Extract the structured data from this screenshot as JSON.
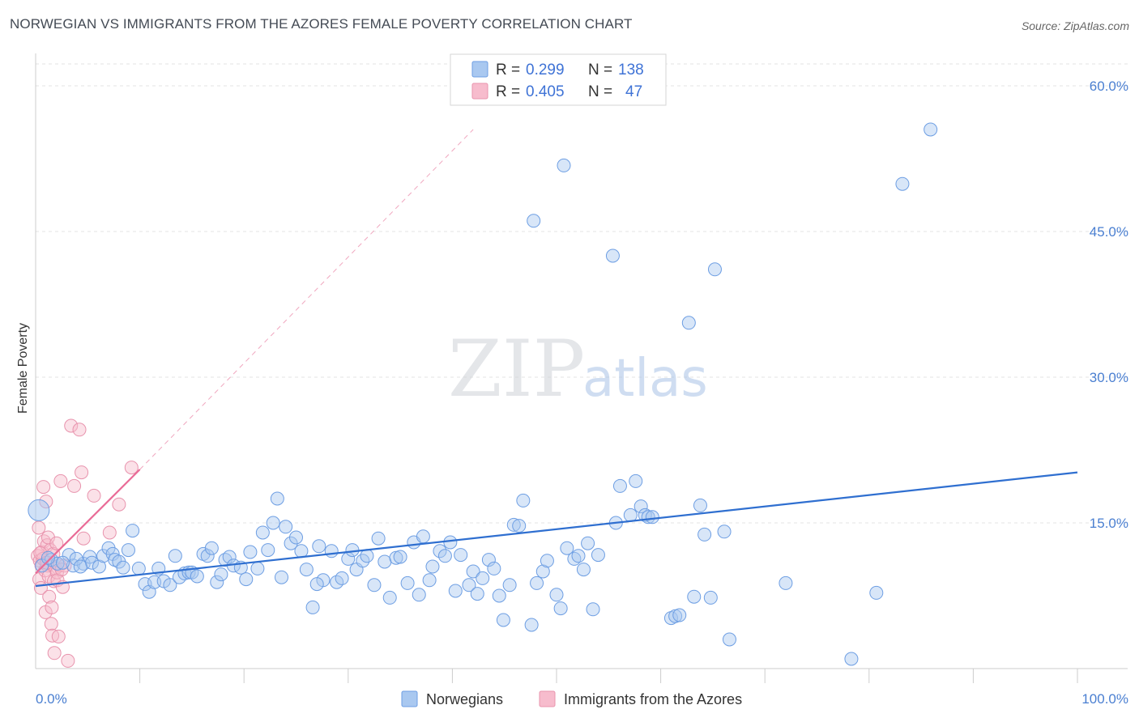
{
  "header": {
    "title": "NORWEGIAN VS IMMIGRANTS FROM THE AZORES FEMALE POVERTY CORRELATION CHART",
    "source": "Source: ZipAtlas.com"
  },
  "watermark": {
    "zip": "ZIP",
    "atlas": "atlas"
  },
  "legend": {
    "rows": [
      {
        "r_label": "R = ",
        "r_value": "0.299",
        "n_label": "N = ",
        "n_value": "138",
        "color": "#a9c8f0",
        "stroke": "#6d9ee3"
      },
      {
        "r_label": "R = ",
        "r_value": "0.405",
        "n_label": "N = ",
        "n_value": "47",
        "color": "#f7bccd",
        "stroke": "#e893ad"
      }
    ]
  },
  "bottom_legend": [
    {
      "label": "Norwegians",
      "color": "#a9c8f0",
      "stroke": "#6d9ee3"
    },
    {
      "label": "Immigrants from the Azores",
      "color": "#f7bccd",
      "stroke": "#e893ad"
    }
  ],
  "chart_data": {
    "type": "scatter",
    "title": "NORWEGIAN VS IMMIGRANTS FROM THE AZORES FEMALE POVERTY CORRELATION CHART",
    "xlabel": "",
    "ylabel": "Female Poverty",
    "xlim": [
      0,
      100
    ],
    "ylim": [
      0,
      63
    ],
    "x_tick_labels": [
      "0.0%",
      "100.0%"
    ],
    "y_ticks": [
      15,
      30,
      45,
      60
    ],
    "y_tick_labels": [
      "15.0%",
      "30.0%",
      "45.0%",
      "60.0%"
    ],
    "grid": true,
    "legend_position": "top-center",
    "colors": {
      "blue": "#3f7fd6",
      "pink": "#e96a96"
    },
    "series": [
      {
        "name": "Norwegians",
        "color": "#a9c8f0",
        "stroke": "#6d9ee3",
        "trend": {
          "x": [
            0,
            100
          ],
          "y": [
            8.5,
            20.2
          ],
          "style": "solid",
          "color": "#2f6fd0"
        },
        "points": [
          [
            0.3,
            16.3
          ],
          [
            1.5,
            11.2
          ],
          [
            2.1,
            10.8
          ],
          [
            3.2,
            11.7
          ],
          [
            3.6,
            10.6
          ],
          [
            4.6,
            10.8
          ],
          [
            5.2,
            11.5
          ],
          [
            5.4,
            10.9
          ],
          [
            6.1,
            10.5
          ],
          [
            6.5,
            11.6
          ],
          [
            7.0,
            12.4
          ],
          [
            7.4,
            11.8
          ],
          [
            7.6,
            11.2
          ],
          [
            8.0,
            11.0
          ],
          [
            8.4,
            10.4
          ],
          [
            8.9,
            12.2
          ],
          [
            9.3,
            14.2
          ],
          [
            9.9,
            10.3
          ],
          [
            10.5,
            8.7
          ],
          [
            10.9,
            7.9
          ],
          [
            11.4,
            8.9
          ],
          [
            11.8,
            10.3
          ],
          [
            12.3,
            9.0
          ],
          [
            12.9,
            8.6
          ],
          [
            13.4,
            11.6
          ],
          [
            13.8,
            9.4
          ],
          [
            14.3,
            9.8
          ],
          [
            14.7,
            9.9
          ],
          [
            15.0,
            9.9
          ],
          [
            15.5,
            9.5
          ],
          [
            16.1,
            11.8
          ],
          [
            16.5,
            11.6
          ],
          [
            16.9,
            12.4
          ],
          [
            17.4,
            8.9
          ],
          [
            17.8,
            9.7
          ],
          [
            18.2,
            11.2
          ],
          [
            18.6,
            11.5
          ],
          [
            19.0,
            10.6
          ],
          [
            19.7,
            10.4
          ],
          [
            20.2,
            9.2
          ],
          [
            20.6,
            12.0
          ],
          [
            21.3,
            10.3
          ],
          [
            21.8,
            14.0
          ],
          [
            22.3,
            12.2
          ],
          [
            22.8,
            15.0
          ],
          [
            23.2,
            17.5
          ],
          [
            23.6,
            9.4
          ],
          [
            24.0,
            14.6
          ],
          [
            24.5,
            12.9
          ],
          [
            25.0,
            13.5
          ],
          [
            25.5,
            12.1
          ],
          [
            26.0,
            10.2
          ],
          [
            26.6,
            6.3
          ],
          [
            27.2,
            12.6
          ],
          [
            27.6,
            9.1
          ],
          [
            28.4,
            12.1
          ],
          [
            28.9,
            8.9
          ],
          [
            29.4,
            9.3
          ],
          [
            30.0,
            11.3
          ],
          [
            30.4,
            12.2
          ],
          [
            30.8,
            10.2
          ],
          [
            31.4,
            11.1
          ],
          [
            31.8,
            11.6
          ],
          [
            32.5,
            8.6
          ],
          [
            32.9,
            13.4
          ],
          [
            33.5,
            11.0
          ],
          [
            34.0,
            7.3
          ],
          [
            34.6,
            11.4
          ],
          [
            35.0,
            11.5
          ],
          [
            35.7,
            8.8
          ],
          [
            36.3,
            13.0
          ],
          [
            36.8,
            7.6
          ],
          [
            37.2,
            13.6
          ],
          [
            37.8,
            9.1
          ],
          [
            38.1,
            10.5
          ],
          [
            38.8,
            12.1
          ],
          [
            39.3,
            11.6
          ],
          [
            39.8,
            13.0
          ],
          [
            40.3,
            8.0
          ],
          [
            40.8,
            11.7
          ],
          [
            41.6,
            8.6
          ],
          [
            42.0,
            10.0
          ],
          [
            42.4,
            7.7
          ],
          [
            42.9,
            9.3
          ],
          [
            43.5,
            11.2
          ],
          [
            44.0,
            10.3
          ],
          [
            44.5,
            7.5
          ],
          [
            44.9,
            5.0
          ],
          [
            45.5,
            8.6
          ],
          [
            45.9,
            14.8
          ],
          [
            46.4,
            14.7
          ],
          [
            46.8,
            17.3
          ],
          [
            47.6,
            4.5
          ],
          [
            48.1,
            8.8
          ],
          [
            48.7,
            10.0
          ],
          [
            49.1,
            11.1
          ],
          [
            50.0,
            7.6
          ],
          [
            50.7,
            51.8
          ],
          [
            50.4,
            6.2
          ],
          [
            51.0,
            12.4
          ],
          [
            51.7,
            11.3
          ],
          [
            52.1,
            11.6
          ],
          [
            52.6,
            10.2
          ],
          [
            53.0,
            12.9
          ],
          [
            53.5,
            6.1
          ],
          [
            54.0,
            11.7
          ],
          [
            55.4,
            42.5
          ],
          [
            55.7,
            15.0
          ],
          [
            56.1,
            18.8
          ],
          [
            57.1,
            15.8
          ],
          [
            57.6,
            19.3
          ],
          [
            58.1,
            16.7
          ],
          [
            58.5,
            15.8
          ],
          [
            58.8,
            15.6
          ],
          [
            61.0,
            5.2
          ],
          [
            61.4,
            5.4
          ],
          [
            61.8,
            5.5
          ],
          [
            62.7,
            35.6
          ],
          [
            63.2,
            7.4
          ],
          [
            63.8,
            16.8
          ],
          [
            64.2,
            13.8
          ],
          [
            64.8,
            7.3
          ],
          [
            65.2,
            41.1
          ],
          [
            66.1,
            14.1
          ],
          [
            66.6,
            3.0
          ],
          [
            72.0,
            8.8
          ],
          [
            78.3,
            1.0
          ],
          [
            80.7,
            7.8
          ],
          [
            83.2,
            49.9
          ],
          [
            85.9,
            55.5
          ],
          [
            47.8,
            46.1
          ],
          [
            0.6,
            10.6
          ],
          [
            1.2,
            11.4
          ],
          [
            2.6,
            10.9
          ],
          [
            3.9,
            11.3
          ],
          [
            4.3,
            10.5
          ],
          [
            27.0,
            8.7
          ],
          [
            59.2,
            15.6
          ]
        ]
      },
      {
        "name": "Immigrants from the Azores",
        "color": "#f7bccd",
        "stroke": "#e893ad",
        "trend": {
          "x": [
            0,
            10
          ],
          "y": [
            9.8,
            20.5
          ],
          "style": "solid",
          "dashed_extension": {
            "x": [
              10,
              42
            ],
            "y": [
              20.5,
              55.5
            ]
          },
          "color": "#e96a96"
        },
        "points": [
          [
            0.2,
            11.6
          ],
          [
            0.3,
            14.5
          ],
          [
            0.35,
            9.2
          ],
          [
            0.4,
            11.1
          ],
          [
            0.5,
            8.3
          ],
          [
            0.55,
            10.6
          ],
          [
            0.6,
            12.0
          ],
          [
            0.7,
            11.3
          ],
          [
            0.75,
            18.7
          ],
          [
            0.8,
            13.1
          ],
          [
            0.9,
            10.1
          ],
          [
            0.95,
            5.8
          ],
          [
            1.0,
            17.2
          ],
          [
            1.1,
            12.7
          ],
          [
            1.15,
            10.6
          ],
          [
            1.2,
            13.5
          ],
          [
            1.25,
            9.5
          ],
          [
            1.3,
            7.4
          ],
          [
            1.4,
            12.2
          ],
          [
            1.5,
            4.6
          ],
          [
            1.55,
            6.3
          ],
          [
            1.6,
            3.4
          ],
          [
            1.7,
            11.8
          ],
          [
            1.75,
            9.0
          ],
          [
            1.8,
            1.6
          ],
          [
            1.9,
            10.3
          ],
          [
            2.0,
            12.9
          ],
          [
            2.05,
            9.9
          ],
          [
            2.1,
            9.1
          ],
          [
            2.2,
            3.3
          ],
          [
            2.3,
            10.6
          ],
          [
            2.4,
            19.3
          ],
          [
            2.6,
            8.4
          ],
          [
            2.8,
            10.6
          ],
          [
            3.1,
            0.8
          ],
          [
            3.4,
            25.0
          ],
          [
            3.7,
            18.8
          ],
          [
            4.2,
            24.6
          ],
          [
            4.4,
            20.2
          ],
          [
            4.6,
            13.4
          ],
          [
            5.6,
            17.8
          ],
          [
            7.1,
            14.0
          ],
          [
            8.0,
            16.9
          ],
          [
            9.2,
            20.7
          ],
          [
            0.45,
            11.9
          ],
          [
            1.05,
            10.9
          ],
          [
            2.5,
            10.2
          ]
        ]
      }
    ]
  }
}
